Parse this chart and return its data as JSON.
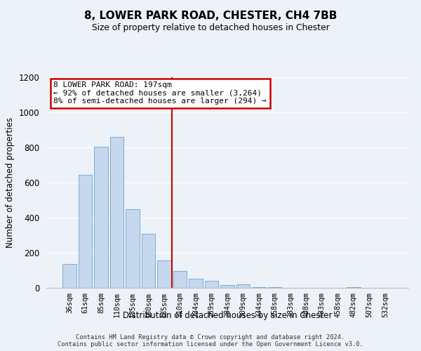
{
  "title": "8, LOWER PARK ROAD, CHESTER, CH4 7BB",
  "subtitle": "Size of property relative to detached houses in Chester",
  "xlabel": "Distribution of detached houses by size in Chester",
  "ylabel": "Number of detached properties",
  "bar_labels": [
    "36sqm",
    "61sqm",
    "85sqm",
    "110sqm",
    "135sqm",
    "160sqm",
    "185sqm",
    "210sqm",
    "234sqm",
    "259sqm",
    "284sqm",
    "309sqm",
    "334sqm",
    "358sqm",
    "383sqm",
    "408sqm",
    "433sqm",
    "458sqm",
    "482sqm",
    "507sqm",
    "532sqm"
  ],
  "bar_values": [
    135,
    645,
    805,
    860,
    447,
    308,
    158,
    97,
    53,
    42,
    18,
    22,
    5,
    3,
    0,
    0,
    0,
    0,
    5,
    0,
    0
  ],
  "bar_color": "#c5d8ee",
  "bar_edge_color": "#7aaed6",
  "vline_x": 6.5,
  "vline_color": "#cc0000",
  "annotation_title": "8 LOWER PARK ROAD: 197sqm",
  "annotation_line1": "← 92% of detached houses are smaller (3,264)",
  "annotation_line2": "8% of semi-detached houses are larger (294) →",
  "annotation_box_facecolor": "#ffffff",
  "annotation_box_edgecolor": "#cc0000",
  "ylim": [
    0,
    1200
  ],
  "yticks": [
    0,
    200,
    400,
    600,
    800,
    1000,
    1200
  ],
  "footer_line1": "Contains HM Land Registry data © Crown copyright and database right 2024.",
  "footer_line2": "Contains public sector information licensed under the Open Government Licence v3.0.",
  "bg_color": "#edf1f8",
  "grid_color": "#ffffff"
}
